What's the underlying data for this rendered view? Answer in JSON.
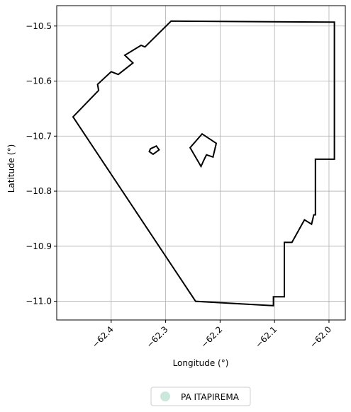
{
  "chart_data": {
    "type": "map",
    "xlabel": "Longitude (°)",
    "ylabel": "Latitude (°)",
    "xlim": [
      -62.5,
      -61.97
    ],
    "ylim": [
      -11.034,
      -10.463
    ],
    "grid": true,
    "legend_placement": "bottom-center",
    "xticks": [
      {
        "value": -62.4,
        "label": "−62.4"
      },
      {
        "value": -62.3,
        "label": "−62.3"
      },
      {
        "value": -62.2,
        "label": "−62.2"
      },
      {
        "value": -62.1,
        "label": "−62.1"
      },
      {
        "value": -62.0,
        "label": "−62.0"
      }
    ],
    "yticks": [
      {
        "value": -10.5,
        "label": "−10.5"
      },
      {
        "value": -10.6,
        "label": "−10.6"
      },
      {
        "value": -10.7,
        "label": "−10.7"
      },
      {
        "value": -10.8,
        "label": "−10.8"
      },
      {
        "value": -10.9,
        "label": "−10.9"
      },
      {
        "value": -11.0,
        "label": "−11.0"
      }
    ],
    "series": [
      {
        "name": "PA ITAPIREMA",
        "legend_color": "#cce8dd",
        "boundary_color": "#000000",
        "rings": [
          [
            [
              -62.29,
              -10.491
            ],
            [
              -61.99,
              -10.493
            ],
            [
              -61.99,
              -10.742
            ],
            [
              -62.025,
              -10.742
            ],
            [
              -62.025,
              -10.843
            ],
            [
              -62.028,
              -10.843
            ],
            [
              -62.032,
              -10.86
            ],
            [
              -62.045,
              -10.852
            ],
            [
              -62.068,
              -10.893
            ],
            [
              -62.082,
              -10.893
            ],
            [
              -62.082,
              -10.992
            ],
            [
              -62.102,
              -10.992
            ],
            [
              -62.102,
              -11.008
            ],
            [
              -62.245,
              -11.0
            ],
            [
              -62.47,
              -10.665
            ],
            [
              -62.423,
              -10.617
            ],
            [
              -62.425,
              -10.606
            ],
            [
              -62.4,
              -10.583
            ],
            [
              -62.387,
              -10.588
            ],
            [
              -62.36,
              -10.567
            ],
            [
              -62.375,
              -10.553
            ],
            [
              -62.345,
              -10.535
            ],
            [
              -62.338,
              -10.538
            ],
            [
              -62.29,
              -10.491
            ]
          ],
          [
            [
              -62.233,
              -10.696
            ],
            [
              -62.207,
              -10.713
            ],
            [
              -62.213,
              -10.738
            ],
            [
              -62.225,
              -10.734
            ],
            [
              -62.23,
              -10.744
            ],
            [
              -62.235,
              -10.755
            ],
            [
              -62.255,
              -10.721
            ],
            [
              -62.233,
              -10.696
            ]
          ],
          [
            [
              -62.328,
              -10.723
            ],
            [
              -62.317,
              -10.718
            ],
            [
              -62.312,
              -10.725
            ],
            [
              -62.323,
              -10.733
            ],
            [
              -62.33,
              -10.728
            ],
            [
              -62.328,
              -10.723
            ]
          ]
        ]
      }
    ]
  }
}
